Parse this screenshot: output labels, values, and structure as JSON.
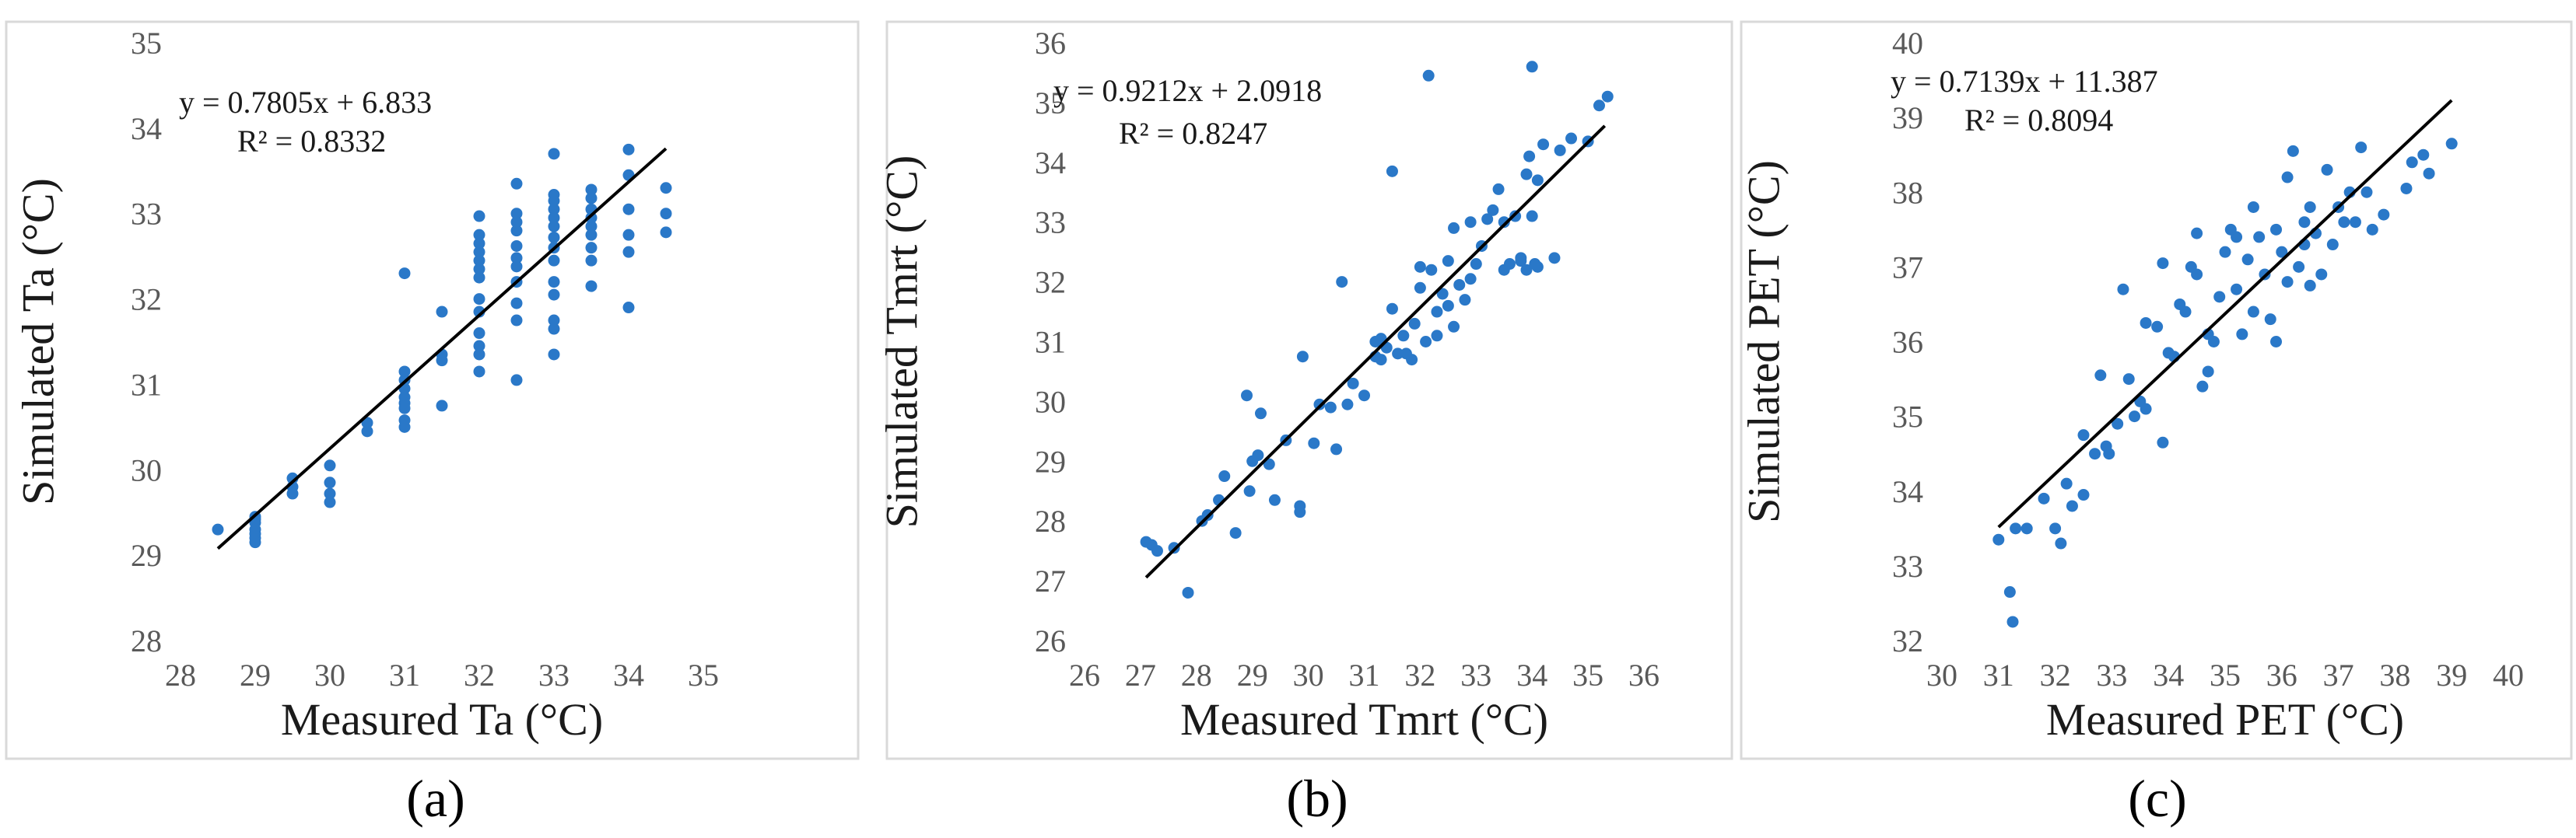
{
  "chart_data": [
    {
      "type": "scatter",
      "panel_label": "(a)",
      "xlabel": "Measured Ta (°C)",
      "ylabel": "Simulated Ta (°C)",
      "xlim": [
        28,
        35
      ],
      "ylim": [
        28,
        35
      ],
      "xticks": [
        28,
        29,
        30,
        31,
        32,
        33,
        34,
        35
      ],
      "yticks": [
        28,
        29,
        30,
        31,
        32,
        33,
        34,
        35
      ],
      "equation": "y = 0.7805x + 6.833",
      "r_squared": "R² = 0.8332",
      "trendline": {
        "slope": 0.7805,
        "intercept": 6.833,
        "x_range": [
          28.5,
          34.5
        ]
      },
      "series": [
        {
          "name": "Ta",
          "color": "#2a78c8",
          "points": [
            [
              28.5,
              29.3
            ],
            [
              29,
              29.45
            ],
            [
              29,
              29.38
            ],
            [
              29,
              29.3
            ],
            [
              29,
              29.25
            ],
            [
              29,
              29.2
            ],
            [
              29,
              29.15
            ],
            [
              29,
              29.42
            ],
            [
              29.5,
              29.9
            ],
            [
              29.5,
              29.8
            ],
            [
              29.5,
              29.72
            ],
            [
              30,
              30.05
            ],
            [
              30,
              29.85
            ],
            [
              30,
              29.72
            ],
            [
              30,
              29.62
            ],
            [
              30.5,
              30.55
            ],
            [
              30.5,
              30.45
            ],
            [
              31,
              32.3
            ],
            [
              31,
              31.15
            ],
            [
              31,
              31.05
            ],
            [
              31,
              30.95
            ],
            [
              31,
              30.85
            ],
            [
              31,
              30.78
            ],
            [
              31,
              30.72
            ],
            [
              31,
              30.58
            ],
            [
              31,
              30.5
            ],
            [
              31.5,
              31.85
            ],
            [
              31.5,
              31.35
            ],
            [
              31.5,
              31.28
            ],
            [
              31.5,
              30.75
            ],
            [
              32,
              32.97
            ],
            [
              32,
              32.75
            ],
            [
              32,
              32.65
            ],
            [
              32,
              32.55
            ],
            [
              32,
              32.45
            ],
            [
              32,
              32.35
            ],
            [
              32,
              32.25
            ],
            [
              32,
              32.0
            ],
            [
              32,
              31.85
            ],
            [
              32,
              31.6
            ],
            [
              32,
              31.45
            ],
            [
              32,
              31.35
            ],
            [
              32,
              31.15
            ],
            [
              32.5,
              33.35
            ],
            [
              32.5,
              33.0
            ],
            [
              32.5,
              32.9
            ],
            [
              32.5,
              32.8
            ],
            [
              32.5,
              32.62
            ],
            [
              32.5,
              32.48
            ],
            [
              32.5,
              32.38
            ],
            [
              32.5,
              32.2
            ],
            [
              32.5,
              31.95
            ],
            [
              32.5,
              31.75
            ],
            [
              32.5,
              31.05
            ],
            [
              33,
              33.7
            ],
            [
              33,
              33.22
            ],
            [
              33,
              33.15
            ],
            [
              33,
              33.05
            ],
            [
              33,
              32.95
            ],
            [
              33,
              32.85
            ],
            [
              33,
              32.72
            ],
            [
              33,
              32.6
            ],
            [
              33,
              32.45
            ],
            [
              33,
              32.2
            ],
            [
              33,
              32.05
            ],
            [
              33,
              31.75
            ],
            [
              33,
              31.65
            ],
            [
              33,
              31.35
            ],
            [
              33.5,
              33.28
            ],
            [
              33.5,
              33.18
            ],
            [
              33.5,
              33.05
            ],
            [
              33.5,
              32.95
            ],
            [
              33.5,
              32.85
            ],
            [
              33.5,
              32.75
            ],
            [
              33.5,
              32.6
            ],
            [
              33.5,
              32.45
            ],
            [
              33.5,
              32.15
            ],
            [
              34,
              33.75
            ],
            [
              34,
              33.45
            ],
            [
              34,
              33.05
            ],
            [
              34,
              32.75
            ],
            [
              34,
              32.55
            ],
            [
              34,
              31.9
            ],
            [
              34.5,
              33.3
            ],
            [
              34.5,
              33.0
            ],
            [
              34.5,
              32.78
            ]
          ]
        }
      ]
    },
    {
      "type": "scatter",
      "panel_label": "(b)",
      "xlabel": "Measured Tmrt (°C)",
      "ylabel": "Simulated Tmrt (°C)",
      "xlim": [
        26,
        36
      ],
      "ylim": [
        26,
        36
      ],
      "xticks": [
        26,
        27,
        28,
        29,
        30,
        31,
        32,
        33,
        34,
        35,
        36
      ],
      "yticks": [
        26,
        27,
        28,
        29,
        30,
        31,
        32,
        33,
        34,
        35,
        36
      ],
      "equation": "y = 0.9212x + 2.0918",
      "r_squared": "R² = 0.8247",
      "trendline": {
        "slope": 0.9212,
        "intercept": 2.0918,
        "x_range": [
          27.1,
          35.3
        ]
      },
      "series": [
        {
          "name": "Tmrt",
          "color": "#2a78c8",
          "points": [
            [
              27.1,
              27.65
            ],
            [
              27.2,
              27.6
            ],
            [
              27.3,
              27.5
            ],
            [
              27.6,
              27.55
            ],
            [
              27.85,
              26.8
            ],
            [
              28.1,
              28.0
            ],
            [
              28.2,
              28.1
            ],
            [
              28.4,
              28.35
            ],
            [
              28.5,
              28.75
            ],
            [
              28.7,
              27.8
            ],
            [
              28.9,
              30.1
            ],
            [
              28.95,
              28.5
            ],
            [
              29.0,
              29.0
            ],
            [
              29.1,
              29.1
            ],
            [
              29.15,
              29.8
            ],
            [
              29.3,
              28.95
            ],
            [
              29.4,
              28.35
            ],
            [
              29.6,
              29.35
            ],
            [
              29.85,
              28.25
            ],
            [
              29.85,
              28.15
            ],
            [
              29.9,
              30.75
            ],
            [
              30.1,
              29.3
            ],
            [
              30.2,
              29.95
            ],
            [
              30.4,
              29.9
            ],
            [
              30.5,
              29.2
            ],
            [
              30.6,
              32.0
            ],
            [
              30.7,
              29.95
            ],
            [
              30.8,
              30.3
            ],
            [
              31.0,
              30.1
            ],
            [
              31.2,
              31.0
            ],
            [
              31.3,
              30.7
            ],
            [
              31.4,
              30.9
            ],
            [
              31.5,
              31.55
            ],
            [
              31.5,
              33.85
            ],
            [
              31.6,
              30.8
            ],
            [
              31.7,
              31.1
            ],
            [
              31.75,
              30.8
            ],
            [
              31.85,
              30.7
            ],
            [
              31.9,
              31.3
            ],
            [
              32.0,
              31.9
            ],
            [
              32.0,
              32.25
            ],
            [
              32.1,
              31.0
            ],
            [
              32.15,
              35.45
            ],
            [
              32.2,
              32.2
            ],
            [
              32.3,
              31.5
            ],
            [
              32.4,
              31.8
            ],
            [
              32.5,
              31.6
            ],
            [
              32.5,
              32.35
            ],
            [
              32.6,
              31.25
            ],
            [
              32.7,
              31.95
            ],
            [
              32.8,
              31.7
            ],
            [
              32.9,
              33.0
            ],
            [
              33.0,
              32.3
            ],
            [
              33.1,
              32.6
            ],
            [
              33.2,
              33.05
            ],
            [
              33.3,
              33.2
            ],
            [
              33.4,
              33.55
            ],
            [
              33.5,
              33.0
            ],
            [
              33.5,
              32.2
            ],
            [
              33.6,
              32.3
            ],
            [
              33.8,
              32.4
            ],
            [
              33.9,
              32.2
            ],
            [
              33.95,
              34.1
            ],
            [
              34.0,
              33.1
            ],
            [
              34.0,
              35.6
            ],
            [
              34.1,
              32.25
            ],
            [
              34.2,
              34.3
            ],
            [
              34.4,
              32.4
            ],
            [
              34.5,
              34.2
            ],
            [
              34.7,
              34.4
            ],
            [
              35.0,
              34.35
            ],
            [
              35.2,
              34.95
            ],
            [
              35.35,
              35.1
            ],
            [
              33.9,
              33.8
            ],
            [
              34.1,
              33.7
            ],
            [
              33.7,
              33.1
            ],
            [
              33.8,
              32.35
            ],
            [
              34.05,
              32.3
            ],
            [
              32.6,
              32.9
            ],
            [
              32.9,
              32.05
            ],
            [
              32.3,
              31.1
            ],
            [
              31.3,
              31.05
            ],
            [
              31.2,
              30.75
            ]
          ]
        }
      ]
    },
    {
      "type": "scatter",
      "panel_label": "(c)",
      "xlabel": "Measured PET (°C)",
      "ylabel": "Simulated PET (°C)",
      "xlim": [
        30,
        40
      ],
      "ylim": [
        32,
        40
      ],
      "xticks": [
        30,
        31,
        32,
        33,
        34,
        35,
        36,
        37,
        38,
        39,
        40
      ],
      "yticks": [
        32,
        33,
        34,
        35,
        36,
        37,
        38,
        39,
        40
      ],
      "equation": "y = 0.7139x + 11.387",
      "r_squared": "R² = 0.8094",
      "trendline": {
        "slope": 0.7139,
        "intercept": 11.387,
        "x_range": [
          31.0,
          39.0
        ]
      },
      "series": [
        {
          "name": "PET",
          "color": "#2a78c8",
          "points": [
            [
              31.0,
              33.35
            ],
            [
              31.2,
              32.65
            ],
            [
              31.25,
              32.25
            ],
            [
              31.3,
              33.5
            ],
            [
              31.5,
              33.5
            ],
            [
              31.8,
              33.9
            ],
            [
              32.0,
              33.5
            ],
            [
              32.1,
              33.3
            ],
            [
              32.2,
              34.1
            ],
            [
              32.3,
              33.8
            ],
            [
              32.5,
              33.95
            ],
            [
              32.5,
              34.75
            ],
            [
              32.7,
              34.5
            ],
            [
              32.8,
              35.55
            ],
            [
              32.95,
              34.5
            ],
            [
              33.1,
              34.9
            ],
            [
              33.2,
              36.7
            ],
            [
              33.3,
              35.5
            ],
            [
              33.4,
              35.0
            ],
            [
              33.5,
              35.2
            ],
            [
              33.6,
              36.25
            ],
            [
              33.8,
              36.2
            ],
            [
              33.9,
              34.65
            ],
            [
              33.9,
              37.05
            ],
            [
              34.0,
              35.85
            ],
            [
              34.2,
              36.5
            ],
            [
              34.3,
              36.4
            ],
            [
              34.4,
              37.0
            ],
            [
              34.5,
              37.45
            ],
            [
              34.5,
              36.9
            ],
            [
              34.6,
              35.4
            ],
            [
              34.7,
              35.6
            ],
            [
              34.8,
              36.0
            ],
            [
              34.9,
              36.6
            ],
            [
              35.0,
              37.2
            ],
            [
              35.1,
              37.5
            ],
            [
              35.2,
              36.7
            ],
            [
              35.3,
              36.1
            ],
            [
              35.4,
              37.1
            ],
            [
              35.5,
              37.8
            ],
            [
              35.6,
              37.4
            ],
            [
              35.7,
              36.9
            ],
            [
              35.8,
              36.3
            ],
            [
              35.9,
              37.5
            ],
            [
              36.0,
              37.2
            ],
            [
              36.1,
              38.2
            ],
            [
              36.2,
              38.55
            ],
            [
              36.3,
              37.0
            ],
            [
              36.4,
              37.6
            ],
            [
              36.5,
              37.8
            ],
            [
              36.6,
              37.45
            ],
            [
              36.7,
              36.9
            ],
            [
              36.8,
              38.3
            ],
            [
              36.9,
              37.3
            ],
            [
              37.0,
              37.8
            ],
            [
              37.2,
              38.0
            ],
            [
              37.3,
              37.6
            ],
            [
              37.4,
              38.6
            ],
            [
              37.5,
              38.0
            ],
            [
              37.6,
              37.5
            ],
            [
              37.8,
              37.7
            ],
            [
              38.2,
              38.05
            ],
            [
              38.3,
              38.4
            ],
            [
              38.5,
              38.5
            ],
            [
              38.6,
              38.25
            ],
            [
              39.0,
              38.65
            ],
            [
              35.5,
              36.4
            ],
            [
              36.1,
              36.8
            ],
            [
              34.7,
              36.1
            ],
            [
              35.2,
              37.4
            ],
            [
              36.5,
              36.75
            ],
            [
              37.1,
              37.6
            ],
            [
              33.6,
              35.1
            ],
            [
              32.9,
              34.6
            ],
            [
              34.1,
              35.8
            ],
            [
              35.9,
              36.0
            ],
            [
              36.4,
              37.3
            ]
          ]
        }
      ]
    }
  ]
}
